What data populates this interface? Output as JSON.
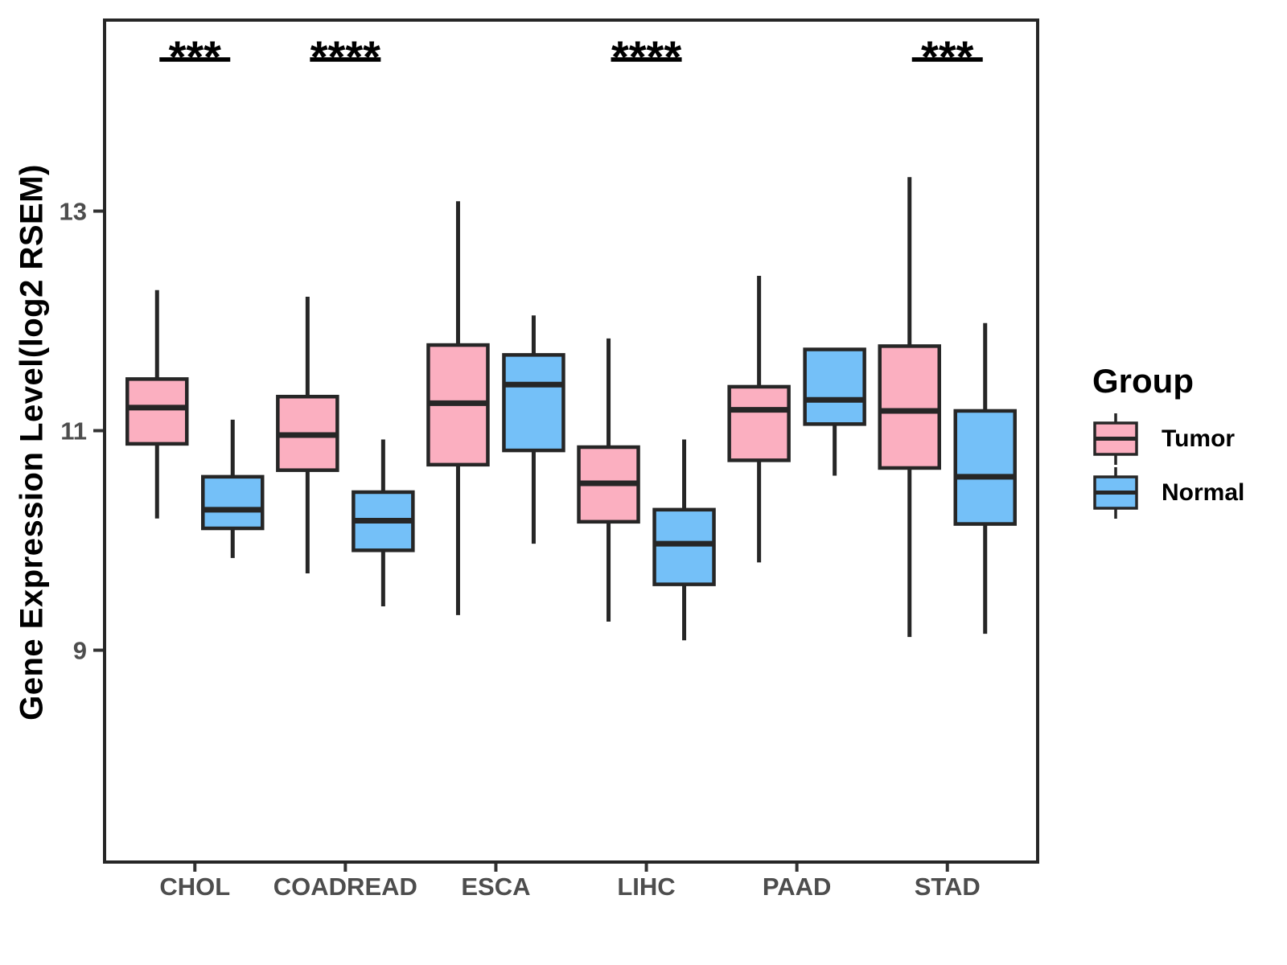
{
  "figure": {
    "background": "#ffffff"
  },
  "y_axis": {
    "title": "Gene Expression Level(log2 RSEM)"
  },
  "legend": {
    "title": "Group",
    "items": [
      {
        "label": "Tumor",
        "color": "#FBAFC0"
      },
      {
        "label": "Normal",
        "color": "#74C0F8"
      }
    ]
  },
  "style_colors": {
    "box_stroke": "#262626",
    "axis_text": "#4d4d4d",
    "tick_mark": "#333333",
    "annotation": "#000000",
    "panel_border": "#262626"
  },
  "chart_data": {
    "type": "boxplot",
    "title": "",
    "xlabel": "",
    "ylabel": "Gene Expression Level(log2 RSEM)",
    "categories": [
      "CHOL",
      "COADREAD",
      "ESCA",
      "LIHC",
      "PAAD",
      "STAD"
    ],
    "ylim": [
      7.07,
      14.74
    ],
    "yticks": [
      9,
      11,
      13
    ],
    "grid": false,
    "legend_position": "right",
    "series": [
      {
        "name": "Tumor",
        "color": "#FBAFC0",
        "boxes": [
          {
            "category": "CHOL",
            "whisker_low": 10.2,
            "q1": 10.88,
            "median": 11.21,
            "q3": 11.47,
            "whisker_high": 12.28
          },
          {
            "category": "COADREAD",
            "whisker_low": 9.7,
            "q1": 10.64,
            "median": 10.96,
            "q3": 11.31,
            "whisker_high": 12.22
          },
          {
            "category": "ESCA",
            "whisker_low": 9.32,
            "q1": 10.69,
            "median": 11.25,
            "q3": 11.78,
            "whisker_high": 13.09
          },
          {
            "category": "LIHC",
            "whisker_low": 9.26,
            "q1": 10.17,
            "median": 10.52,
            "q3": 10.85,
            "whisker_high": 11.84
          },
          {
            "category": "PAAD",
            "whisker_low": 9.8,
            "q1": 10.73,
            "median": 11.19,
            "q3": 11.4,
            "whisker_high": 12.41
          },
          {
            "category": "STAD",
            "whisker_low": 9.12,
            "q1": 10.66,
            "median": 11.18,
            "q3": 11.77,
            "whisker_high": 13.31
          }
        ]
      },
      {
        "name": "Normal",
        "color": "#74C0F8",
        "boxes": [
          {
            "category": "CHOL",
            "whisker_low": 9.84,
            "q1": 10.11,
            "median": 10.28,
            "q3": 10.58,
            "whisker_high": 11.1
          },
          {
            "category": "COADREAD",
            "whisker_low": 9.4,
            "q1": 9.91,
            "median": 10.18,
            "q3": 10.44,
            "whisker_high": 10.92
          },
          {
            "category": "ESCA",
            "whisker_low": 9.97,
            "q1": 10.82,
            "median": 11.42,
            "q3": 11.69,
            "whisker_high": 12.05
          },
          {
            "category": "LIHC",
            "whisker_low": 9.09,
            "q1": 9.6,
            "median": 9.97,
            "q3": 10.28,
            "whisker_high": 10.92
          },
          {
            "category": "PAAD",
            "whisker_low": 10.59,
            "q1": 11.06,
            "median": 11.28,
            "q3": 11.74,
            "whisker_high": 11.74
          },
          {
            "category": "STAD",
            "whisker_low": 9.15,
            "q1": 10.15,
            "median": 10.58,
            "q3": 11.18,
            "whisker_high": 11.98
          }
        ]
      }
    ],
    "annotations": [
      {
        "category": "CHOL",
        "label": "***"
      },
      {
        "category": "COADREAD",
        "label": "****"
      },
      {
        "category": "LIHC",
        "label": "****"
      },
      {
        "category": "STAD",
        "label": "***"
      }
    ]
  }
}
